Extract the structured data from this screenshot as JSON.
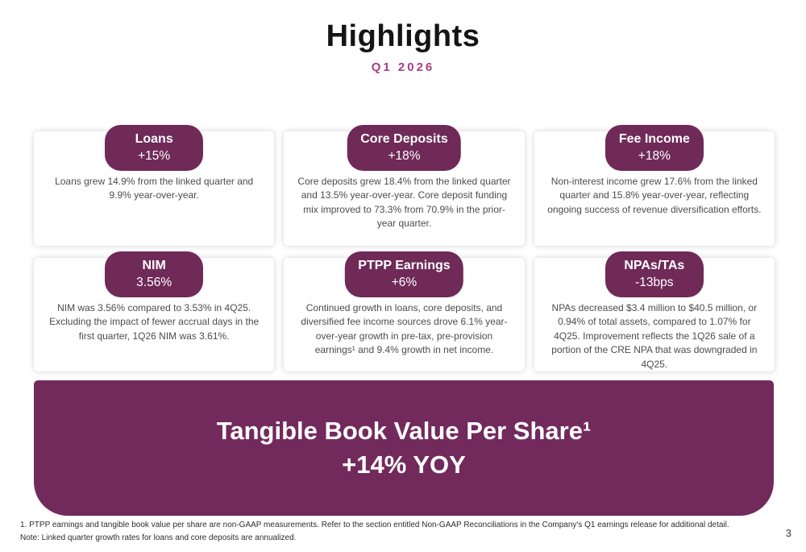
{
  "page": {
    "title": "Highlights",
    "subtitle": "Q1 2026",
    "page_number": "3"
  },
  "colors": {
    "badge": "#6f2a58",
    "banner": "#722a5c",
    "accent": "#a93c86"
  },
  "cards": [
    {
      "label": "Loans",
      "value": "+15%",
      "body": "Loans grew 14.9% from the linked quarter and 9.9% year-over-year."
    },
    {
      "label": "Core Deposits",
      "value": "+18%",
      "body": "Core deposits grew 18.4% from the linked quarter and 13.5% year-over-year. Core deposit funding mix improved to 73.3% from 70.9% in the prior-year quarter."
    },
    {
      "label": "Fee Income",
      "value": "+18%",
      "body": "Non-interest income grew 17.6% from the linked quarter and 15.8% year-over-year, reflecting ongoing success of revenue diversification efforts."
    },
    {
      "label": "NIM",
      "value": "3.56%",
      "body": "NIM was 3.56% compared to 3.53% in 4Q25. Excluding the impact of fewer accrual days in the first quarter, 1Q26 NIM was 3.61%."
    },
    {
      "label": "PTPP Earnings",
      "value": "+6%",
      "body": "Continued growth in loans, core deposits, and diversified fee income sources drove 6.1% year-over-year growth in pre-tax, pre-provision earnings¹ and 9.4% growth in net income."
    },
    {
      "label": "NPAs/TAs",
      "value": "-13bps",
      "body": "NPAs decreased $3.4 million to $40.5 million, or 0.94% of total assets, compared to 1.07% for 4Q25. Improvement reflects the 1Q26 sale of a portion of the CRE NPA that was downgraded in 4Q25."
    }
  ],
  "banner": {
    "line1": "Tangible Book Value Per Share¹",
    "line2": "+14% YOY"
  },
  "footnotes": [
    "1. PTPP earnings and tangible book value per share are non-GAAP measurements. Refer to the section entitled Non-GAAP Reconciliations in the Company's Q1 earnings release for additional detail.",
    "Note: Linked quarter growth rates for loans and core deposits are annualized."
  ]
}
